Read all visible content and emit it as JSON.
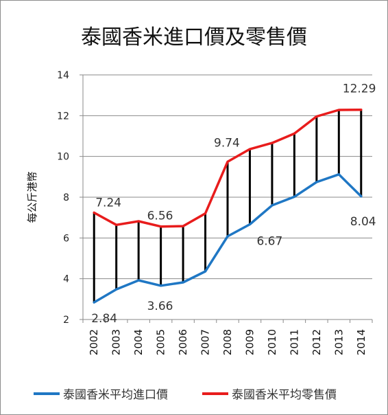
{
  "chart_data": {
    "type": "line",
    "title": "泰國香米進口價及零售價",
    "xlabel": "",
    "ylabel": "每公斤港幣",
    "ylim": [
      2,
      14
    ],
    "yticks": [
      2,
      4,
      6,
      8,
      10,
      12,
      14
    ],
    "grid": true,
    "legend_position": "bottom",
    "x": [
      "2002",
      "2003",
      "2004",
      "2005",
      "2006",
      "2007",
      "2008",
      "2009",
      "2010",
      "2011",
      "2012",
      "2013",
      "2014"
    ],
    "series": [
      {
        "name": "泰國香米平均進口價",
        "color": "#1f77c4",
        "values": [
          2.84,
          3.48,
          3.92,
          3.66,
          3.82,
          4.36,
          6.08,
          6.67,
          7.6,
          8.02,
          8.74,
          9.12,
          8.04
        ]
      },
      {
        "name": "泰國香米平均零售價",
        "color": "#e81c1c",
        "values": [
          7.24,
          6.64,
          6.82,
          6.56,
          6.58,
          7.2,
          9.74,
          10.36,
          10.66,
          11.12,
          11.96,
          12.28,
          12.29
        ]
      }
    ],
    "connector_color": "#000000",
    "data_labels": [
      {
        "series": 1,
        "index": 0,
        "text": "7.24"
      },
      {
        "series": 1,
        "index": 3,
        "text": "6.56"
      },
      {
        "series": 1,
        "index": 6,
        "text": "9.74"
      },
      {
        "series": 1,
        "index": 12,
        "text": "12.29"
      },
      {
        "series": 0,
        "index": 0,
        "text": "2.84"
      },
      {
        "series": 0,
        "index": 3,
        "text": "3.66"
      },
      {
        "series": 0,
        "index": 7,
        "text": "6.67"
      },
      {
        "series": 0,
        "index": 12,
        "text": "8.04"
      }
    ]
  }
}
